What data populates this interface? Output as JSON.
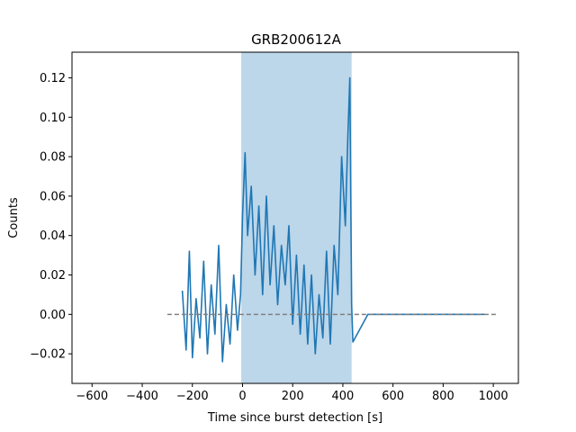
{
  "chart_data": {
    "type": "line",
    "title": "GRB200612A",
    "xlabel": "Time since burst detection [s]",
    "ylabel": "Counts",
    "xlim": [
      -680,
      1100
    ],
    "ylim": [
      -0.035,
      0.133
    ],
    "xticks": [
      -600,
      -400,
      -200,
      0,
      200,
      400,
      600,
      800,
      1000
    ],
    "yticks": [
      -0.02,
      0.0,
      0.02,
      0.04,
      0.06,
      0.08,
      0.1,
      0.12
    ],
    "xtick_labels": [
      "−600",
      "−400",
      "−200",
      "0",
      "200",
      "400",
      "600",
      "800",
      "1000"
    ],
    "ytick_labels": [
      "−0.02",
      "0.00",
      "0.02",
      "0.04",
      "0.06",
      "0.08",
      "0.10",
      "0.12"
    ],
    "grid": false,
    "shaded_region": {
      "x": [
        -5,
        435
      ],
      "color": "#bcd6ea"
    },
    "baseline": {
      "y": 0.0,
      "x": [
        -300,
        1020
      ],
      "style": "dashed",
      "color": "#808080"
    },
    "series": [
      {
        "color": "#1f77b4",
        "x": [
          -240,
          -225,
          -212,
          -200,
          -185,
          -170,
          -155,
          -140,
          -125,
          -110,
          -95,
          -80,
          -65,
          -50,
          -35,
          -20,
          -8,
          0,
          10,
          20,
          35,
          50,
          65,
          80,
          95,
          110,
          125,
          140,
          155,
          170,
          185,
          200,
          215,
          230,
          245,
          260,
          275,
          290,
          305,
          320,
          335,
          350,
          365,
          380,
          395,
          410,
          420,
          428,
          435,
          440,
          500,
          600,
          700,
          800,
          900,
          965
        ],
        "y": [
          0.012,
          -0.018,
          0.032,
          -0.022,
          0.008,
          -0.012,
          0.027,
          -0.02,
          0.015,
          -0.01,
          0.035,
          -0.024,
          0.005,
          -0.015,
          0.02,
          -0.008,
          0.01,
          0.05,
          0.082,
          0.04,
          0.065,
          0.02,
          0.055,
          0.01,
          0.06,
          0.015,
          0.045,
          0.005,
          0.035,
          0.015,
          0.045,
          -0.005,
          0.03,
          -0.01,
          0.025,
          -0.015,
          0.02,
          -0.02,
          0.01,
          -0.012,
          0.032,
          -0.015,
          0.035,
          0.01,
          0.08,
          0.045,
          0.09,
          0.12,
          0.005,
          -0.014,
          0.0,
          0.0,
          0.0,
          0.0,
          0.0,
          0.0
        ]
      }
    ]
  }
}
